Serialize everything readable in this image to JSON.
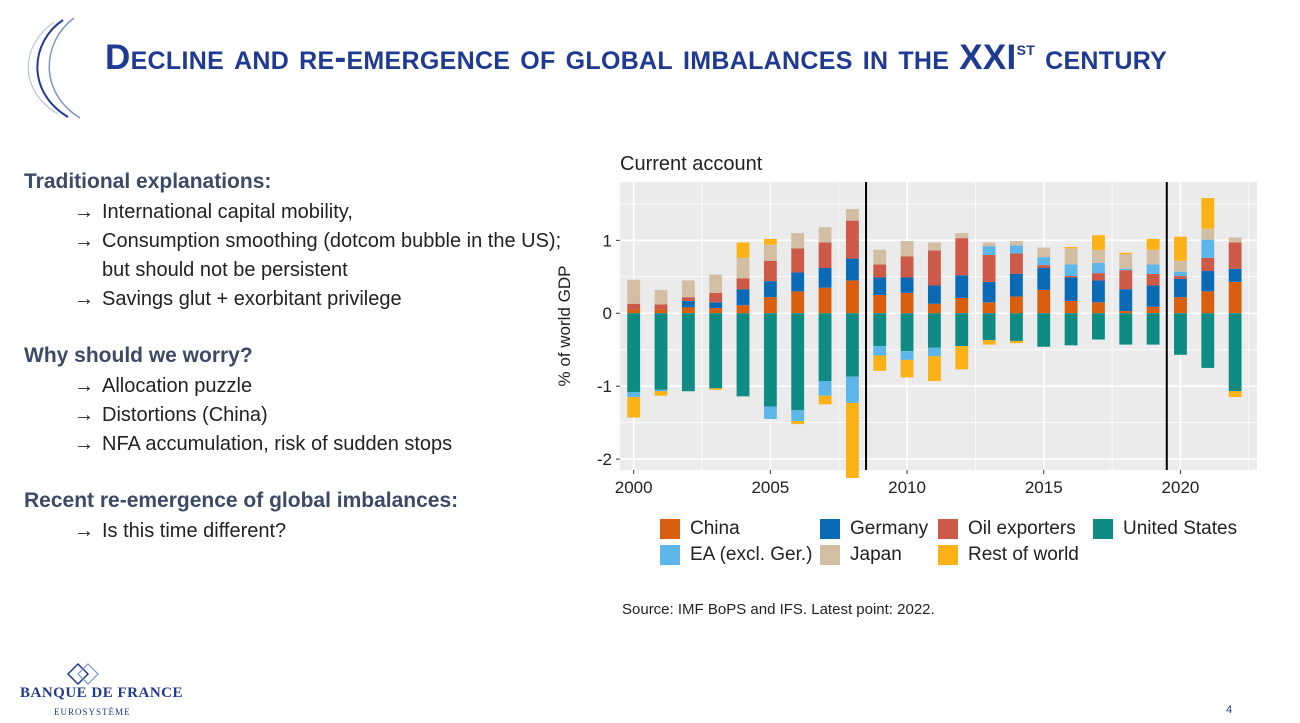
{
  "slide": {
    "title_main": "Decline and re-emergence of global imbalances in the XXI",
    "title_sup": "st",
    "title_end": " century",
    "page_number": "4"
  },
  "left_panel": {
    "sections": [
      {
        "title": "Traditional explanations:",
        "items": [
          "International capital mobility,",
          "Consumption smoothing (dotcom bubble in the US); but should not be persistent",
          "Savings glut + exorbitant privilege"
        ]
      },
      {
        "title": "Why should we worry?",
        "items": [
          "Allocation puzzle",
          "Distortions (China)",
          "NFA accumulation, risk of sudden stops"
        ]
      },
      {
        "title": "Recent re-emergence of global imbalances:",
        "items": [
          "Is this time different?"
        ]
      }
    ],
    "arrow_glyph": "→"
  },
  "source_note": "Source: IMF BoPS and IFS. Latest point: 2022.",
  "logo": {
    "name": "BANQUE DE FRANCE",
    "subtitle": "EUROSYSTÈME"
  },
  "chart_data": {
    "type": "bar",
    "stacked": true,
    "title": "Current account",
    "ylabel": "% of world GDP",
    "xlabel": "",
    "ylim": [
      -2.15,
      1.8
    ],
    "yticks": [
      -2,
      -1,
      0,
      1
    ],
    "xticks": [
      2000,
      2005,
      2010,
      2015,
      2020
    ],
    "xlim": [
      1999.5,
      2022.8
    ],
    "grid": true,
    "legend_position": "bottom",
    "vlines": [
      2008.5,
      2019.5
    ],
    "categories": [
      2000,
      2001,
      2002,
      2003,
      2004,
      2005,
      2006,
      2007,
      2008,
      2009,
      2010,
      2011,
      2012,
      2013,
      2014,
      2015,
      2016,
      2017,
      2018,
      2019,
      2020,
      2021,
      2022
    ],
    "series": [
      {
        "name": "China",
        "color": "#d95f0e",
        "values": [
          0.05,
          0.05,
          0.08,
          0.07,
          0.11,
          0.22,
          0.3,
          0.35,
          0.45,
          0.25,
          0.28,
          0.13,
          0.21,
          0.15,
          0.23,
          0.32,
          0.17,
          0.15,
          0.03,
          0.09,
          0.22,
          0.3,
          0.43
        ]
      },
      {
        "name": "Germany",
        "color": "#0a6ab5",
        "values": [
          0,
          0,
          0.09,
          0.08,
          0.22,
          0.22,
          0.26,
          0.27,
          0.3,
          0.24,
          0.21,
          0.25,
          0.31,
          0.28,
          0.31,
          0.3,
          0.32,
          0.3,
          0.3,
          0.29,
          0.25,
          0.28,
          0.18
        ]
      },
      {
        "name": "Oil exporters",
        "color": "#cd5a48",
        "values": [
          0.08,
          0.07,
          0.05,
          0.13,
          0.15,
          0.28,
          0.33,
          0.35,
          0.52,
          0.18,
          0.29,
          0.48,
          0.51,
          0.37,
          0.28,
          0.04,
          0.02,
          0.1,
          0.26,
          0.16,
          0.04,
          0.18,
          0.36
        ]
      },
      {
        "name": "United States",
        "color": "#0e8b83",
        "values": [
          -1.08,
          -1.05,
          -1.07,
          -1.03,
          -1.14,
          -1.28,
          -1.33,
          -0.93,
          -0.87,
          -0.45,
          -0.52,
          -0.47,
          -0.45,
          -0.37,
          -0.38,
          -0.46,
          -0.44,
          -0.36,
          -0.43,
          -0.43,
          -0.57,
          -0.75,
          -1.07
        ]
      },
      {
        "name": "EA (excl. Ger.)",
        "color": "#5cb6ea",
        "values": [
          -0.07,
          -0.02,
          0,
          0,
          0,
          -0.17,
          -0.15,
          -0.2,
          -0.36,
          -0.13,
          -0.12,
          -0.12,
          0,
          0.12,
          0.11,
          0.11,
          0.16,
          0.14,
          0.02,
          0.13,
          0.06,
          0.25,
          0
        ]
      },
      {
        "name": "Japan",
        "color": "#d1bea3",
        "values": [
          0.33,
          0.2,
          0.23,
          0.25,
          0.28,
          0.22,
          0.21,
          0.21,
          0.16,
          0.2,
          0.21,
          0.11,
          0.07,
          0.05,
          0.06,
          0.13,
          0.22,
          0.18,
          0.2,
          0.2,
          0.15,
          0.15,
          0.07
        ]
      },
      {
        "name": "Rest of world",
        "color": "#fbb217",
        "values": [
          -0.28,
          -0.06,
          0,
          -0.02,
          0.21,
          0.08,
          -0.04,
          -0.12,
          -1.03,
          -0.21,
          -0.24,
          -0.34,
          -0.32,
          -0.06,
          -0.03,
          0,
          0.02,
          0.2,
          0.02,
          0.15,
          0.33,
          0.42,
          -0.08
        ]
      }
    ]
  }
}
